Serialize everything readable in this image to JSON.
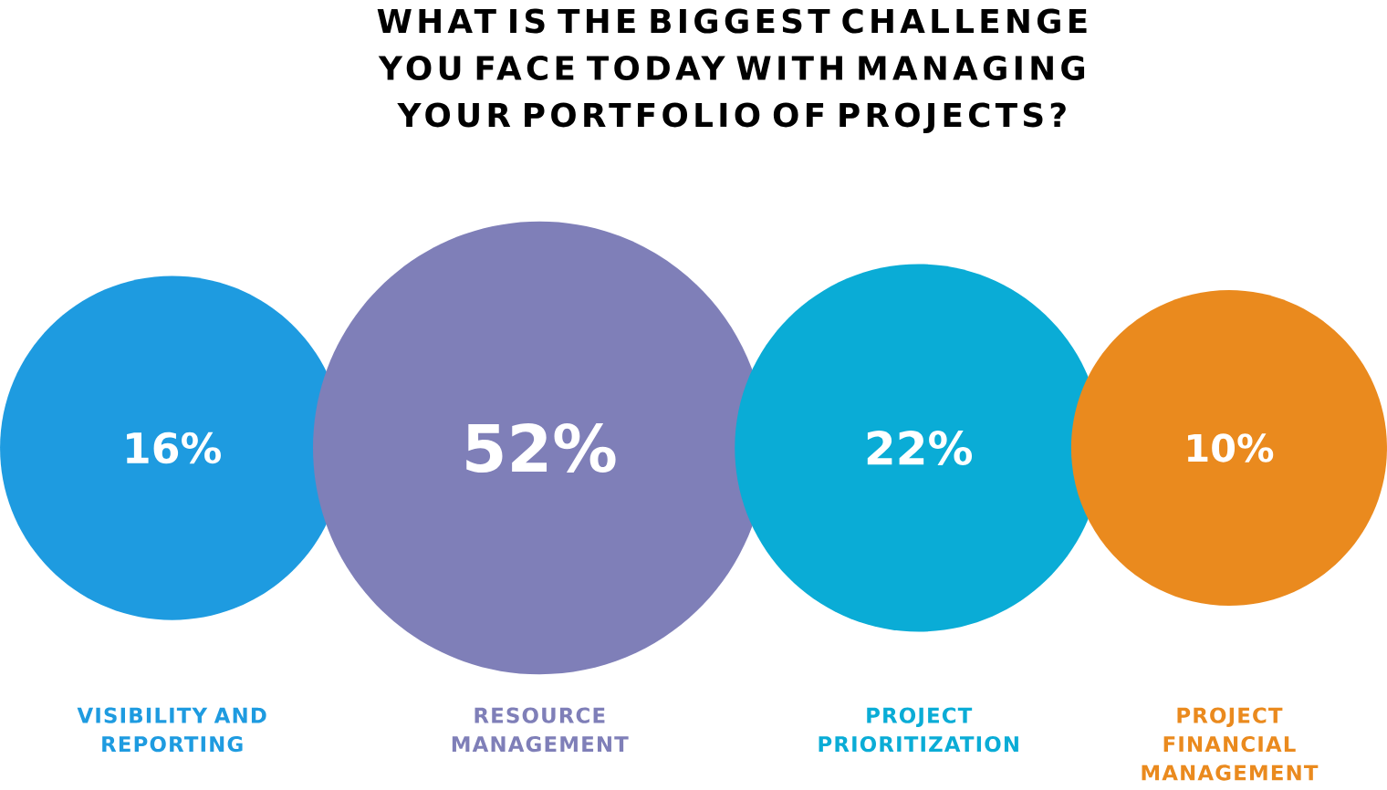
{
  "chart_data": {
    "type": "other",
    "title": "WHAT IS THE BIGGEST CHALLENGE YOU FACE TODAY WITH MANAGING YOUR PORTFOLIO OF PROJECTS?",
    "categories": [
      "VISIBILITY AND REPORTING",
      "RESOURCE MANAGEMENT",
      "PROJECT PRIORITIZATION",
      "PROJECT FINANCIAL MANAGEMENT"
    ],
    "values": [
      16,
      52,
      22,
      10
    ],
    "value_labels": [
      "16%",
      "52%",
      "22%",
      "10%"
    ],
    "colors": [
      "#1e9be0",
      "#7f7fb8",
      "#0aacd6",
      "#ea8a1e"
    ]
  }
}
